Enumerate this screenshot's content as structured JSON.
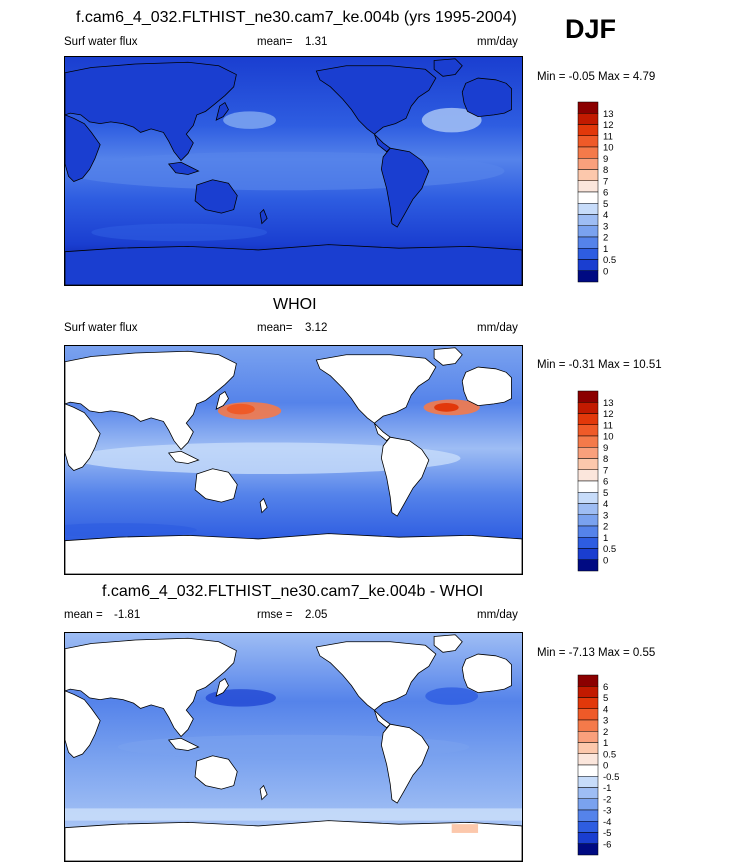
{
  "season": "DJF",
  "panels": [
    {
      "id": "model",
      "title": "f.cam6_4_032.FLTHIST_ne30.cam7_ke.004b (yrs 1995-2004)",
      "left_label": "Surf water flux",
      "center_label": "mean=",
      "center_value": "1.31",
      "units": "mm/day",
      "minmax": "Min =  -0.05 Max =   4.79"
    },
    {
      "id": "obs",
      "title": "WHOI",
      "left_label": "Surf water flux",
      "center_label": "mean=",
      "center_value": "3.12",
      "units": "mm/day",
      "minmax": "Min =  -0.31 Max =  10.51"
    },
    {
      "id": "diff",
      "title": "f.cam6_4_032.FLTHIST_ne30.cam7_ke.004b - WHOI",
      "left_label": "mean =",
      "left_value": "-1.81",
      "center_label": "rmse =",
      "center_value": "2.05",
      "units": "mm/day",
      "minmax": "Min =  -7.13 Max =   0.55"
    }
  ],
  "colorbars": {
    "abs": {
      "labels": [
        "13",
        "12",
        "11",
        "10",
        "9",
        "8",
        "7",
        "6",
        "5",
        "4",
        "3",
        "2",
        "1",
        "0.5",
        "0"
      ],
      "colors": [
        "#8b0000",
        "#c21a00",
        "#e2380a",
        "#ef5a28",
        "#f47a4a",
        "#f9a07c",
        "#fcc8ac",
        "#fbe6dc",
        "#ffffff",
        "#c7dcfa",
        "#9ebdf4",
        "#7aa2ef",
        "#5583ea",
        "#2e5de1",
        "#1a3ed0",
        "#000a82"
      ]
    },
    "diff": {
      "labels": [
        "6",
        "5",
        "4",
        "3",
        "2",
        "1",
        "0.5",
        "0",
        "-0.5",
        "-1",
        "-2",
        "-3",
        "-4",
        "-5",
        "-6"
      ],
      "colors": [
        "#8b0000",
        "#c21a00",
        "#e2380a",
        "#ef5a28",
        "#f47a4a",
        "#f9a07c",
        "#fcc8ac",
        "#fbe6dc",
        "#ffffff",
        "#c7dcfa",
        "#9ebdf4",
        "#7aa2ef",
        "#5583ea",
        "#2e5de1",
        "#1a3ed0",
        "#000a82"
      ]
    }
  },
  "chart_data": [
    {
      "type": "heatmap",
      "title": "f.cam6_4_032.FLTHIST_ne30.cam7_ke.004b (yrs 1995-2004)",
      "variable": "Surf water flux",
      "units": "mm/day",
      "mean": 1.31,
      "min": -0.05,
      "max": 4.79,
      "colorbar_levels": [
        0,
        0.5,
        1,
        2,
        3,
        4,
        5,
        6,
        7,
        8,
        9,
        10,
        11,
        12,
        13
      ]
    },
    {
      "type": "heatmap",
      "title": "WHOI",
      "variable": "Surf water flux",
      "units": "mm/day",
      "mean": 3.12,
      "min": -0.31,
      "max": 10.51,
      "colorbar_levels": [
        0,
        0.5,
        1,
        2,
        3,
        4,
        5,
        6,
        7,
        8,
        9,
        10,
        11,
        12,
        13
      ]
    },
    {
      "type": "heatmap",
      "title": "f.cam6_4_032.FLTHIST_ne30.cam7_ke.004b - WHOI",
      "units": "mm/day",
      "mean": -1.81,
      "rmse": 2.05,
      "min": -7.13,
      "max": 0.55,
      "colorbar_levels": [
        -6,
        -5,
        -4,
        -3,
        -2,
        -1,
        -0.5,
        0,
        0.5,
        1,
        2,
        3,
        4,
        5,
        6
      ]
    }
  ]
}
